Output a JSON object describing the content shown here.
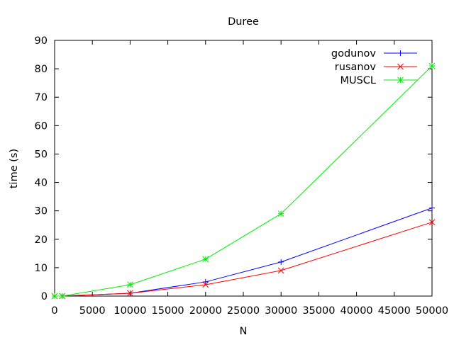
{
  "chart_data": {
    "type": "line",
    "title": "Duree",
    "xlabel": "N",
    "ylabel": "time (s)",
    "xlim": [
      0,
      50000
    ],
    "ylim": [
      0,
      90
    ],
    "xticks": [
      0,
      5000,
      10000,
      15000,
      20000,
      25000,
      30000,
      35000,
      40000,
      45000,
      50000
    ],
    "yticks": [
      0,
      10,
      20,
      30,
      40,
      50,
      60,
      70,
      80,
      90
    ],
    "grid": false,
    "legend_position": "top-right",
    "series": [
      {
        "name": "godunov",
        "color": "#0000ff",
        "marker": "plus",
        "x": [
          0,
          1000,
          10000,
          20000,
          30000,
          50000
        ],
        "y": [
          0,
          0,
          1,
          5,
          12,
          31
        ]
      },
      {
        "name": "rusanov",
        "color": "#ff0000",
        "marker": "cross",
        "x": [
          0,
          1000,
          10000,
          20000,
          30000,
          50000
        ],
        "y": [
          0,
          0,
          1,
          4,
          9,
          26
        ]
      },
      {
        "name": "MUSCL",
        "color": "#00ee00",
        "marker": "star",
        "x": [
          0,
          1000,
          10000,
          20000,
          30000,
          50000
        ],
        "y": [
          0,
          0,
          4,
          13,
          29,
          81
        ]
      }
    ]
  }
}
